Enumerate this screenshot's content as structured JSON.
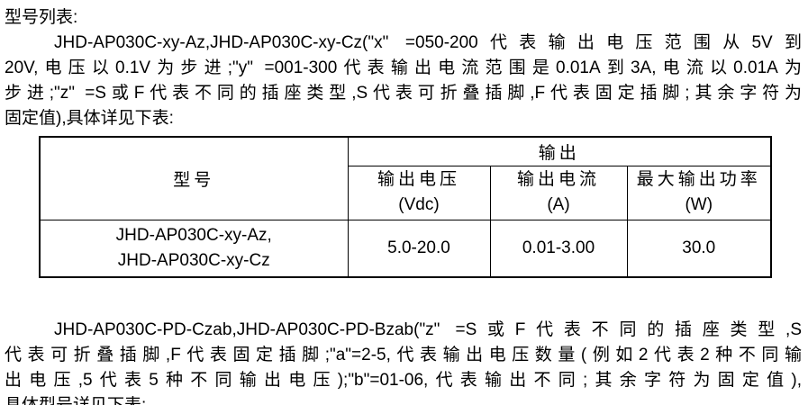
{
  "doc": {
    "title_line": "型号列表:",
    "para1": {
      "lines": [
        "JHD-AP030C-xy-Az,JHD-AP030C-xy-Cz(\"x\" =050-200代表输出电压范围从5V到",
        "20V,电压以0.1V为步进;\"y\" =001-300代表输出电流范围是0.01A到3A,电流以0.01A为",
        "步进;\"z\" =S或F代表不同的插座类型,S代表可折叠插脚,F代表固定插脚;其余字符为",
        "固定值),具体详见下表:"
      ]
    },
    "para2": {
      "lines": [
        "JHD-AP030C-PD-Czab,JHD-AP030C-PD-Bzab(\"z\" =S或F代表不同的插座类型,S",
        "代表可折叠插脚,F代表固定插脚;\"a\"=2-5,代表输出电压数量(例如2代表2种不同输",
        "出电压,5代表5种不同输出电压);\"b\"=01-06,代表输出不同;其余字符为固定值),",
        "具体型号详见下表:"
      ]
    }
  },
  "table": {
    "col1_header": "型号",
    "output_header": "输出",
    "sub_headers": [
      {
        "name": "输出电压",
        "unit": "(Vdc)"
      },
      {
        "name": "输出电流",
        "unit": "(A)"
      },
      {
        "name": "最大输出功率",
        "unit": "(W)"
      }
    ],
    "row": {
      "model_line1": "JHD-AP030C-xy-Az,",
      "model_line2": "JHD-AP030C-xy-Cz",
      "voltage": "5.0-20.0",
      "current": "0.01-3.00",
      "power": "30.0"
    }
  }
}
